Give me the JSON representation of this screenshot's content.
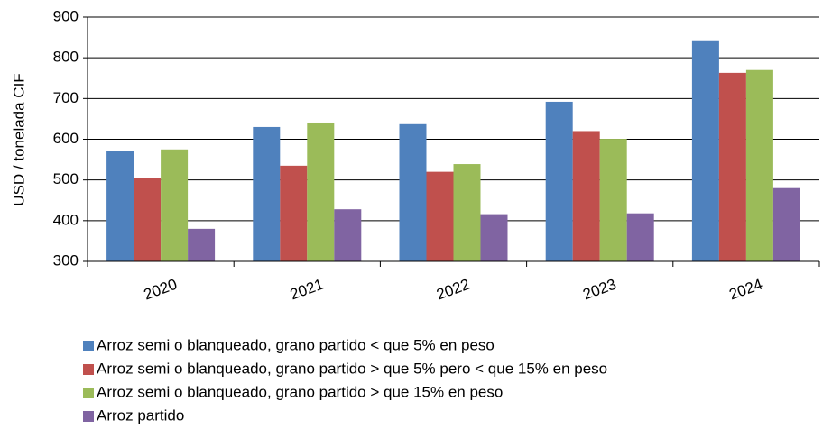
{
  "chart_data": {
    "type": "bar",
    "categories": [
      "2020",
      "2021",
      "2022",
      "2023",
      "2024"
    ],
    "y_label": "USD / tonelada CIF",
    "series": [
      {
        "name": "Arroz semi o blanqueado, grano partido < que 5% en peso",
        "color": "#4f81bd",
        "values": [
          572,
          630,
          637,
          692,
          843
        ]
      },
      {
        "name": "Arroz semi o blanqueado, grano partido > que 5% pero < que 15% en peso",
        "color": "#c0504d",
        "values": [
          505,
          535,
          520,
          620,
          763
        ]
      },
      {
        "name": "Arroz semi o blanqueado, grano partido > que 15% en peso",
        "color": "#9bbb59",
        "values": [
          575,
          641,
          539,
          601,
          770
        ]
      },
      {
        "name": "Arroz partido",
        "color": "#8064a2",
        "values": [
          380,
          428,
          416,
          418,
          480
        ]
      }
    ],
    "ylim": [
      300,
      900
    ],
    "yticks": [
      300,
      400,
      500,
      600,
      700,
      800,
      900
    ],
    "grid": true,
    "legend": "bottom"
  }
}
